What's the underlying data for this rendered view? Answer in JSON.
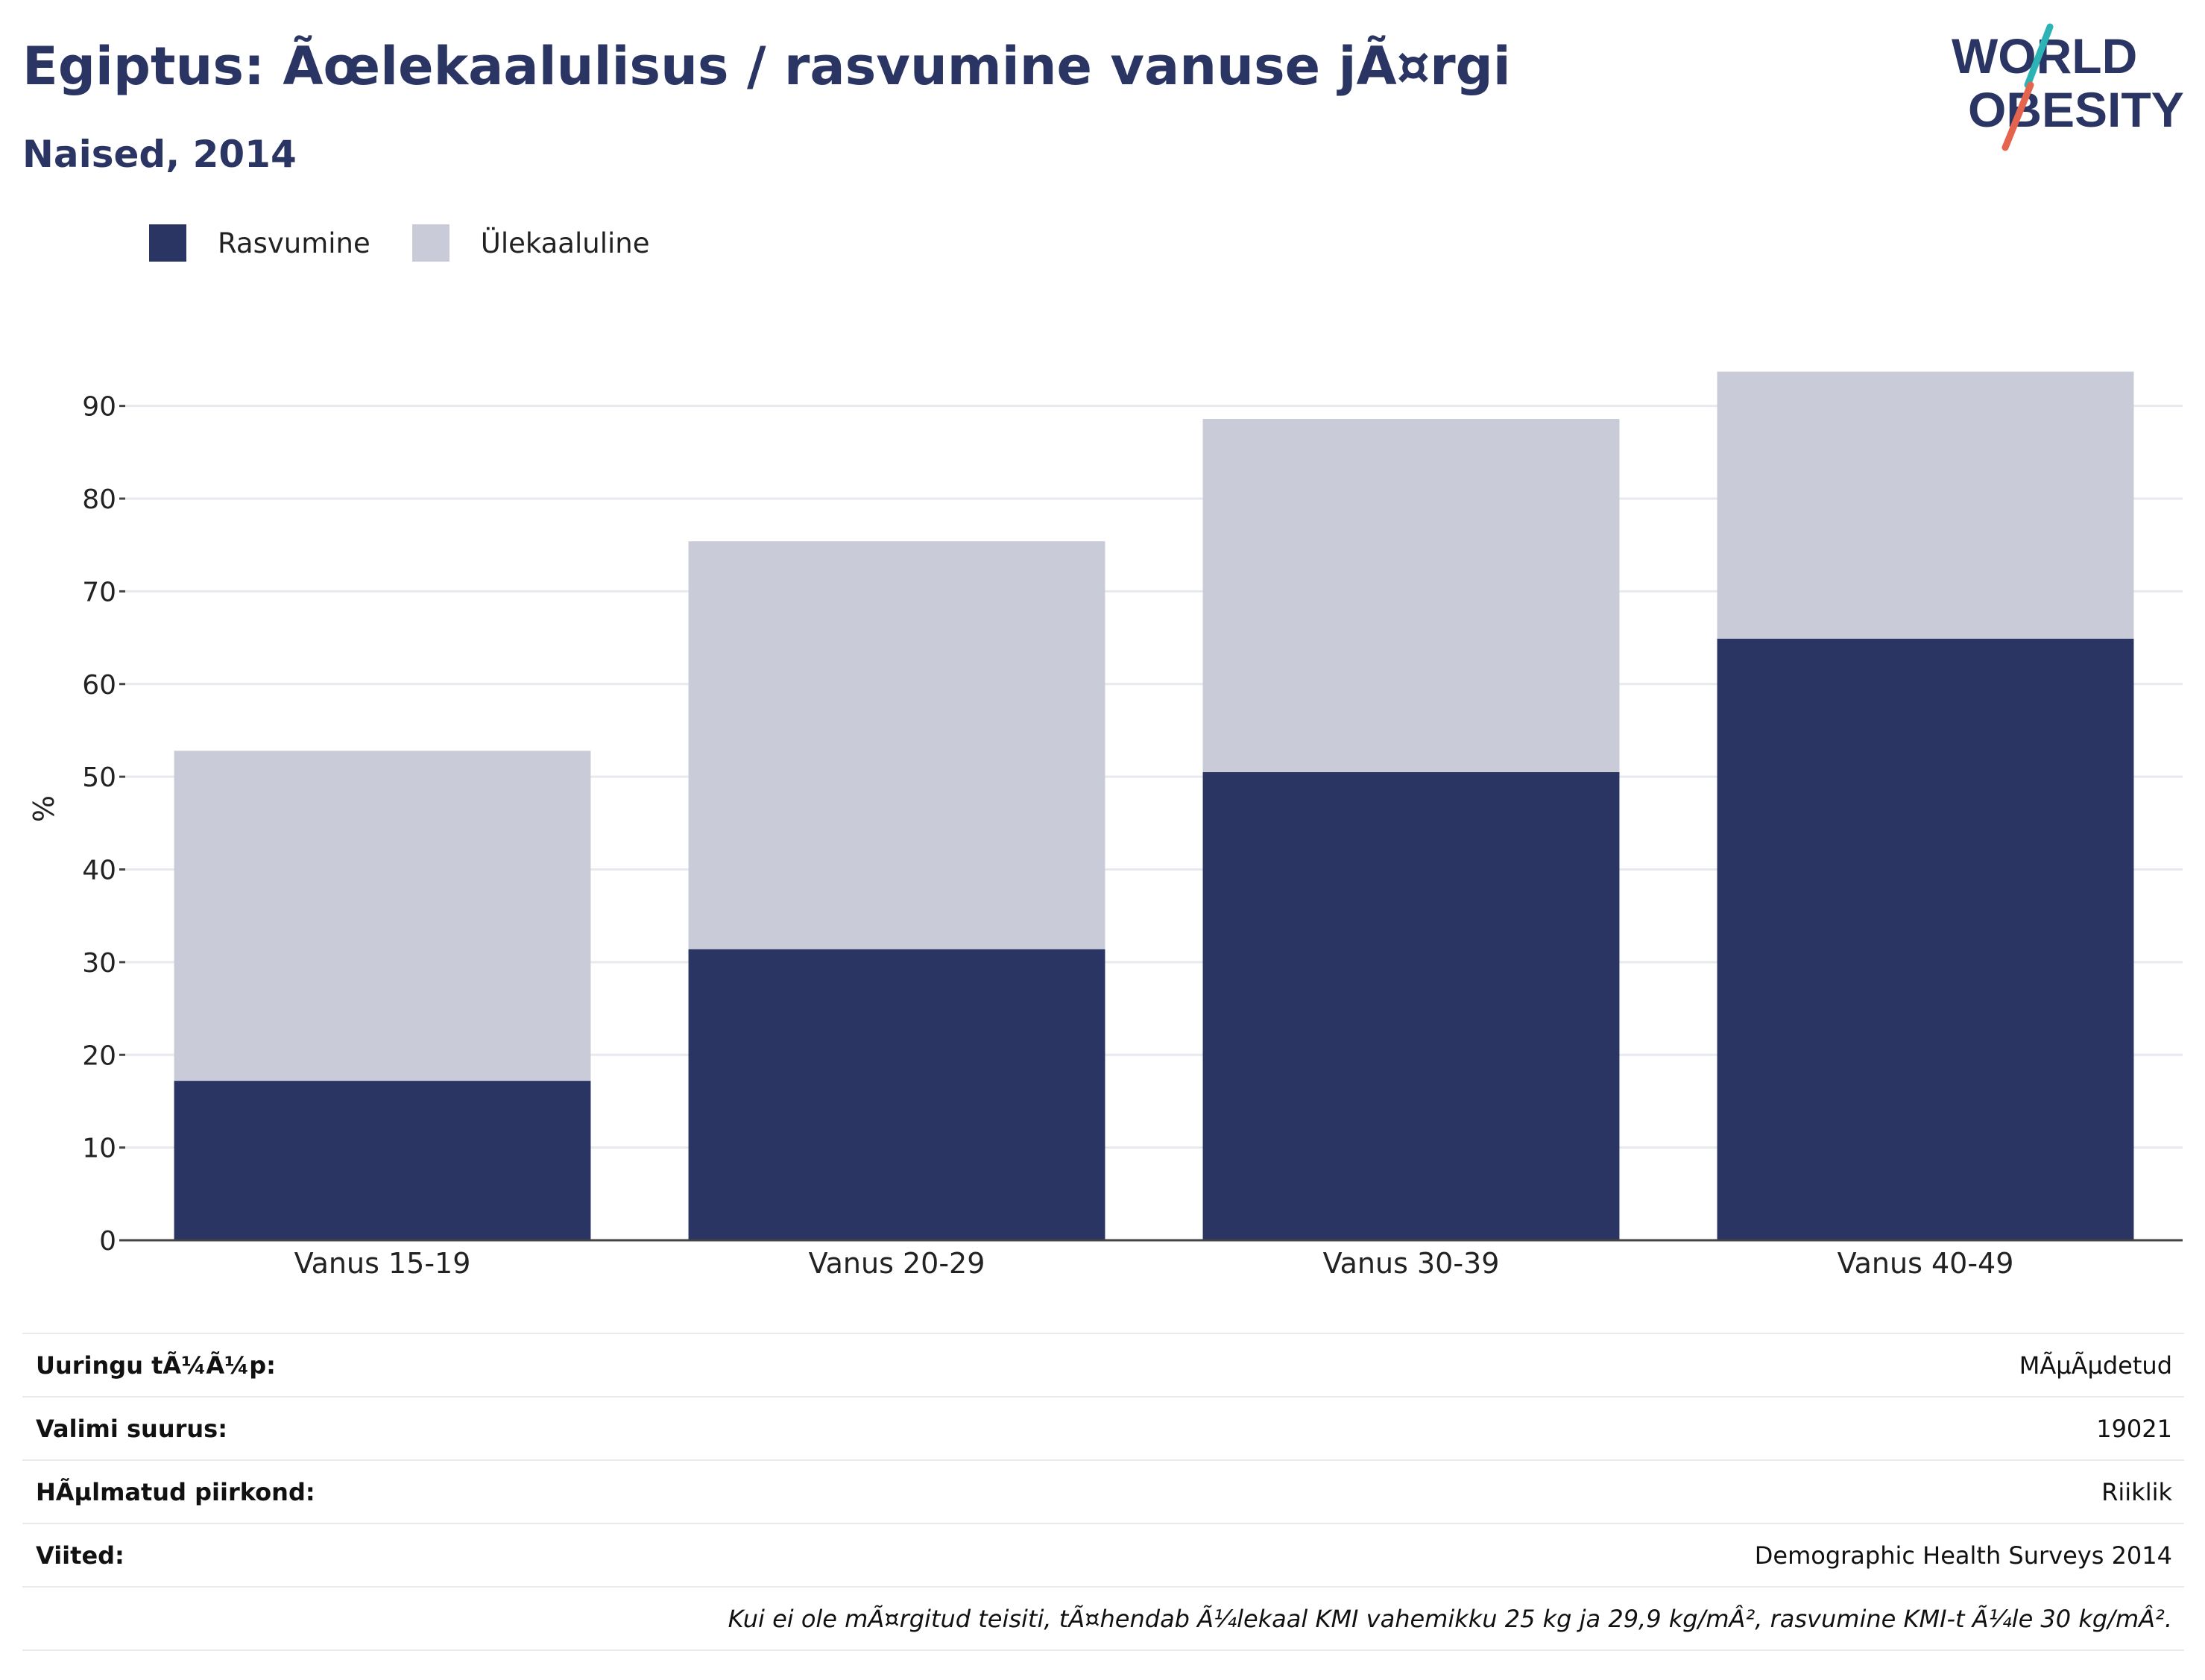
{
  "header": {
    "title": "Egiptus: Ãœlekaalulisus / rasvumine vanuse jÃ¤rgi",
    "subtitle": "Naised, 2014"
  },
  "logo": {
    "line1": "WORLD",
    "line2": "OBESITY"
  },
  "chart_data": {
    "type": "bar",
    "stacked": true,
    "categories": [
      "Vanus 15-19",
      "Vanus 20-29",
      "Vanus 30-39",
      "Vanus 40-49"
    ],
    "series": [
      {
        "name": "Rasvumine",
        "color": "#2a3563",
        "values": [
          17.2,
          31.4,
          50.5,
          64.9
        ]
      },
      {
        "name": "Ülekaaluline",
        "color": "#c9ccd8",
        "values": [
          35.6,
          44.0,
          38.1,
          28.8
        ]
      }
    ],
    "ylabel": "%",
    "ylim": [
      0,
      96
    ],
    "yticks": [
      0,
      10,
      20,
      30,
      40,
      50,
      60,
      70,
      80,
      90
    ],
    "grid": true,
    "legend": "top-left"
  },
  "info": {
    "rows": [
      {
        "label": "Uuringu tÃ¼Ã¼p:",
        "value": "MÃµÃµdetud"
      },
      {
        "label": "Valimi suurus:",
        "value": "19021"
      },
      {
        "label": "HÃµlmatud piirkond:",
        "value": "Riiklik"
      },
      {
        "label": "Viited:",
        "value": "Demographic Health Surveys 2014"
      }
    ],
    "note": "Kui ei ole mÃ¤rgitud teisiti, tÃ¤hendab Ã¼lekaal KMI vahemikku 25 kg ja 29,9 kg/mÂ², rasvumine KMI-t Ã¼le 30 kg/mÂ²."
  }
}
